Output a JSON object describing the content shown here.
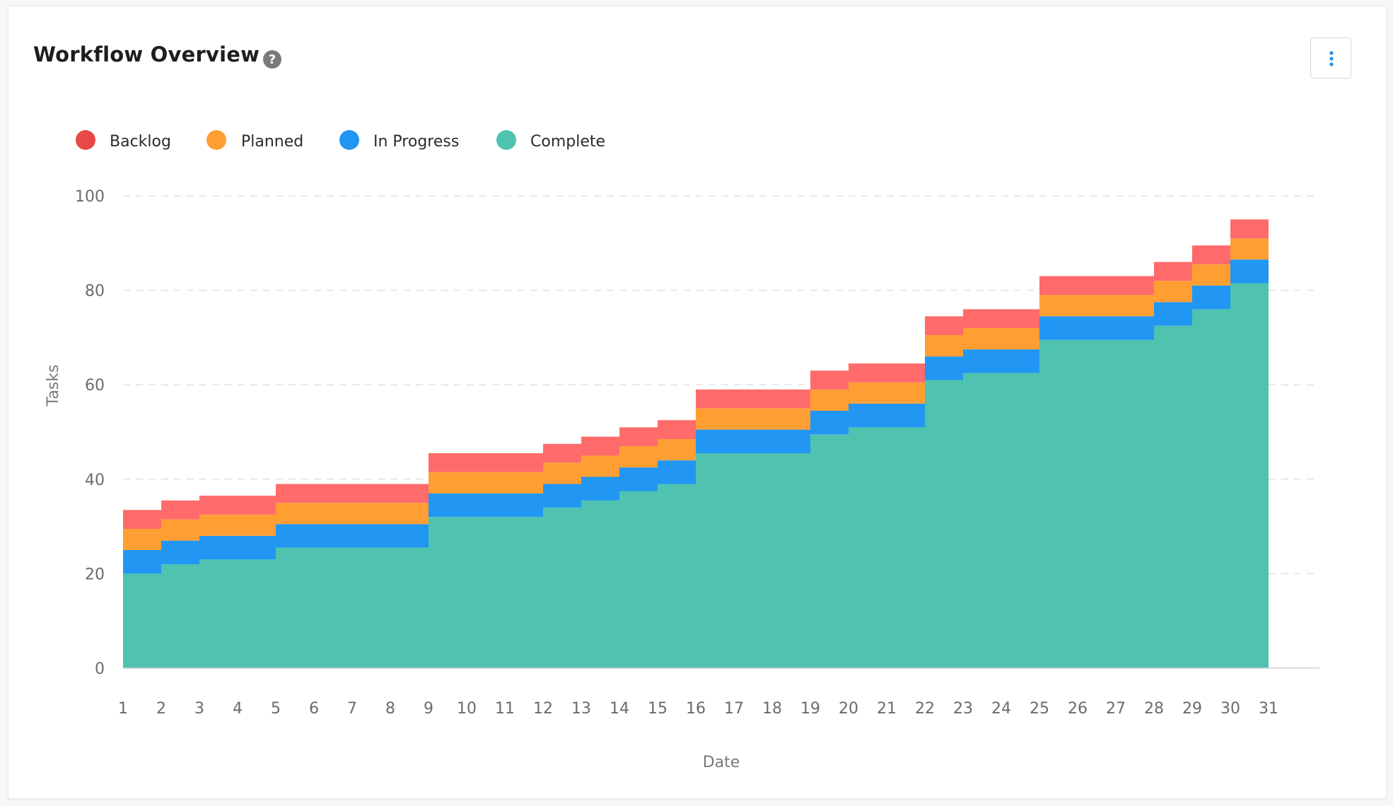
{
  "header": {
    "title": "Workflow Overview",
    "help_icon": "question-circle-icon",
    "menu_icon": "vertical-ellipsis-icon"
  },
  "colors": {
    "backlog": "#FF6B6B",
    "planned": "#FF9F33",
    "in_progress": "#2196F3",
    "complete": "#4FC3B0",
    "backlog_legend": "#E84848"
  },
  "legend": [
    {
      "label": "Backlog",
      "color": "#E84848"
    },
    {
      "label": "Planned",
      "color": "#FF9F33"
    },
    {
      "label": "In Progress",
      "color": "#2196F3"
    },
    {
      "label": "Complete",
      "color": "#4FC3B0"
    }
  ],
  "chart_data": {
    "type": "area",
    "stacked": true,
    "step": true,
    "xlabel": "Date",
    "ylabel": "Tasks",
    "xlim": [
      1,
      32
    ],
    "ylim": [
      0,
      100
    ],
    "yticks": [
      0,
      20,
      40,
      60,
      80,
      100
    ],
    "xticks": [
      "1",
      "2",
      "3",
      "4",
      "5",
      "6",
      "7",
      "8",
      "9",
      "10",
      "11",
      "12",
      "13",
      "14",
      "15",
      "16",
      "17",
      "18",
      "19",
      "20",
      "21",
      "22",
      "23",
      "24",
      "25",
      "26",
      "27",
      "28",
      "29",
      "30",
      "31"
    ],
    "grid": "horizontal-dashed",
    "legend_position": "top-left",
    "x": [
      1,
      2,
      3,
      4,
      5,
      6,
      7,
      8,
      9,
      10,
      11,
      12,
      13,
      14,
      15,
      16,
      17,
      18,
      19,
      20,
      21,
      22,
      23,
      24,
      25,
      26,
      27,
      28,
      29,
      30,
      31
    ],
    "series": [
      {
        "name": "Complete",
        "values": [
          20,
          22,
          23,
          23,
          25.5,
          25.5,
          25.5,
          25.5,
          32,
          32,
          32,
          34,
          35.5,
          37.5,
          39,
          45.5,
          45.5,
          45.5,
          49.5,
          51,
          51,
          61,
          62.5,
          62.5,
          69.5,
          69.5,
          69.5,
          72.5,
          76,
          81.5,
          81.5
        ]
      },
      {
        "name": "In Progress",
        "values": [
          5,
          5,
          5,
          5,
          5,
          5,
          5,
          5,
          5,
          5,
          5,
          5,
          5,
          5,
          5,
          5,
          5,
          5,
          5,
          5,
          5,
          5,
          5,
          5,
          5,
          5,
          5,
          5,
          5,
          5,
          5
        ]
      },
      {
        "name": "Planned",
        "values": [
          4.5,
          4.5,
          4.5,
          4.5,
          4.5,
          4.5,
          4.5,
          4.5,
          4.5,
          4.5,
          4.5,
          4.5,
          4.5,
          4.5,
          4.5,
          4.5,
          4.5,
          4.5,
          4.5,
          4.5,
          4.5,
          4.5,
          4.5,
          4.5,
          4.5,
          4.5,
          4.5,
          4.5,
          4.5,
          4.5,
          4.5
        ]
      },
      {
        "name": "Backlog",
        "values": [
          4,
          4,
          4,
          4,
          4,
          4,
          4,
          4,
          4,
          4,
          4,
          4,
          4,
          4,
          4,
          4,
          4,
          4,
          4,
          4,
          4,
          4,
          4,
          4,
          4,
          4,
          4,
          4,
          4,
          4,
          4
        ]
      }
    ]
  }
}
